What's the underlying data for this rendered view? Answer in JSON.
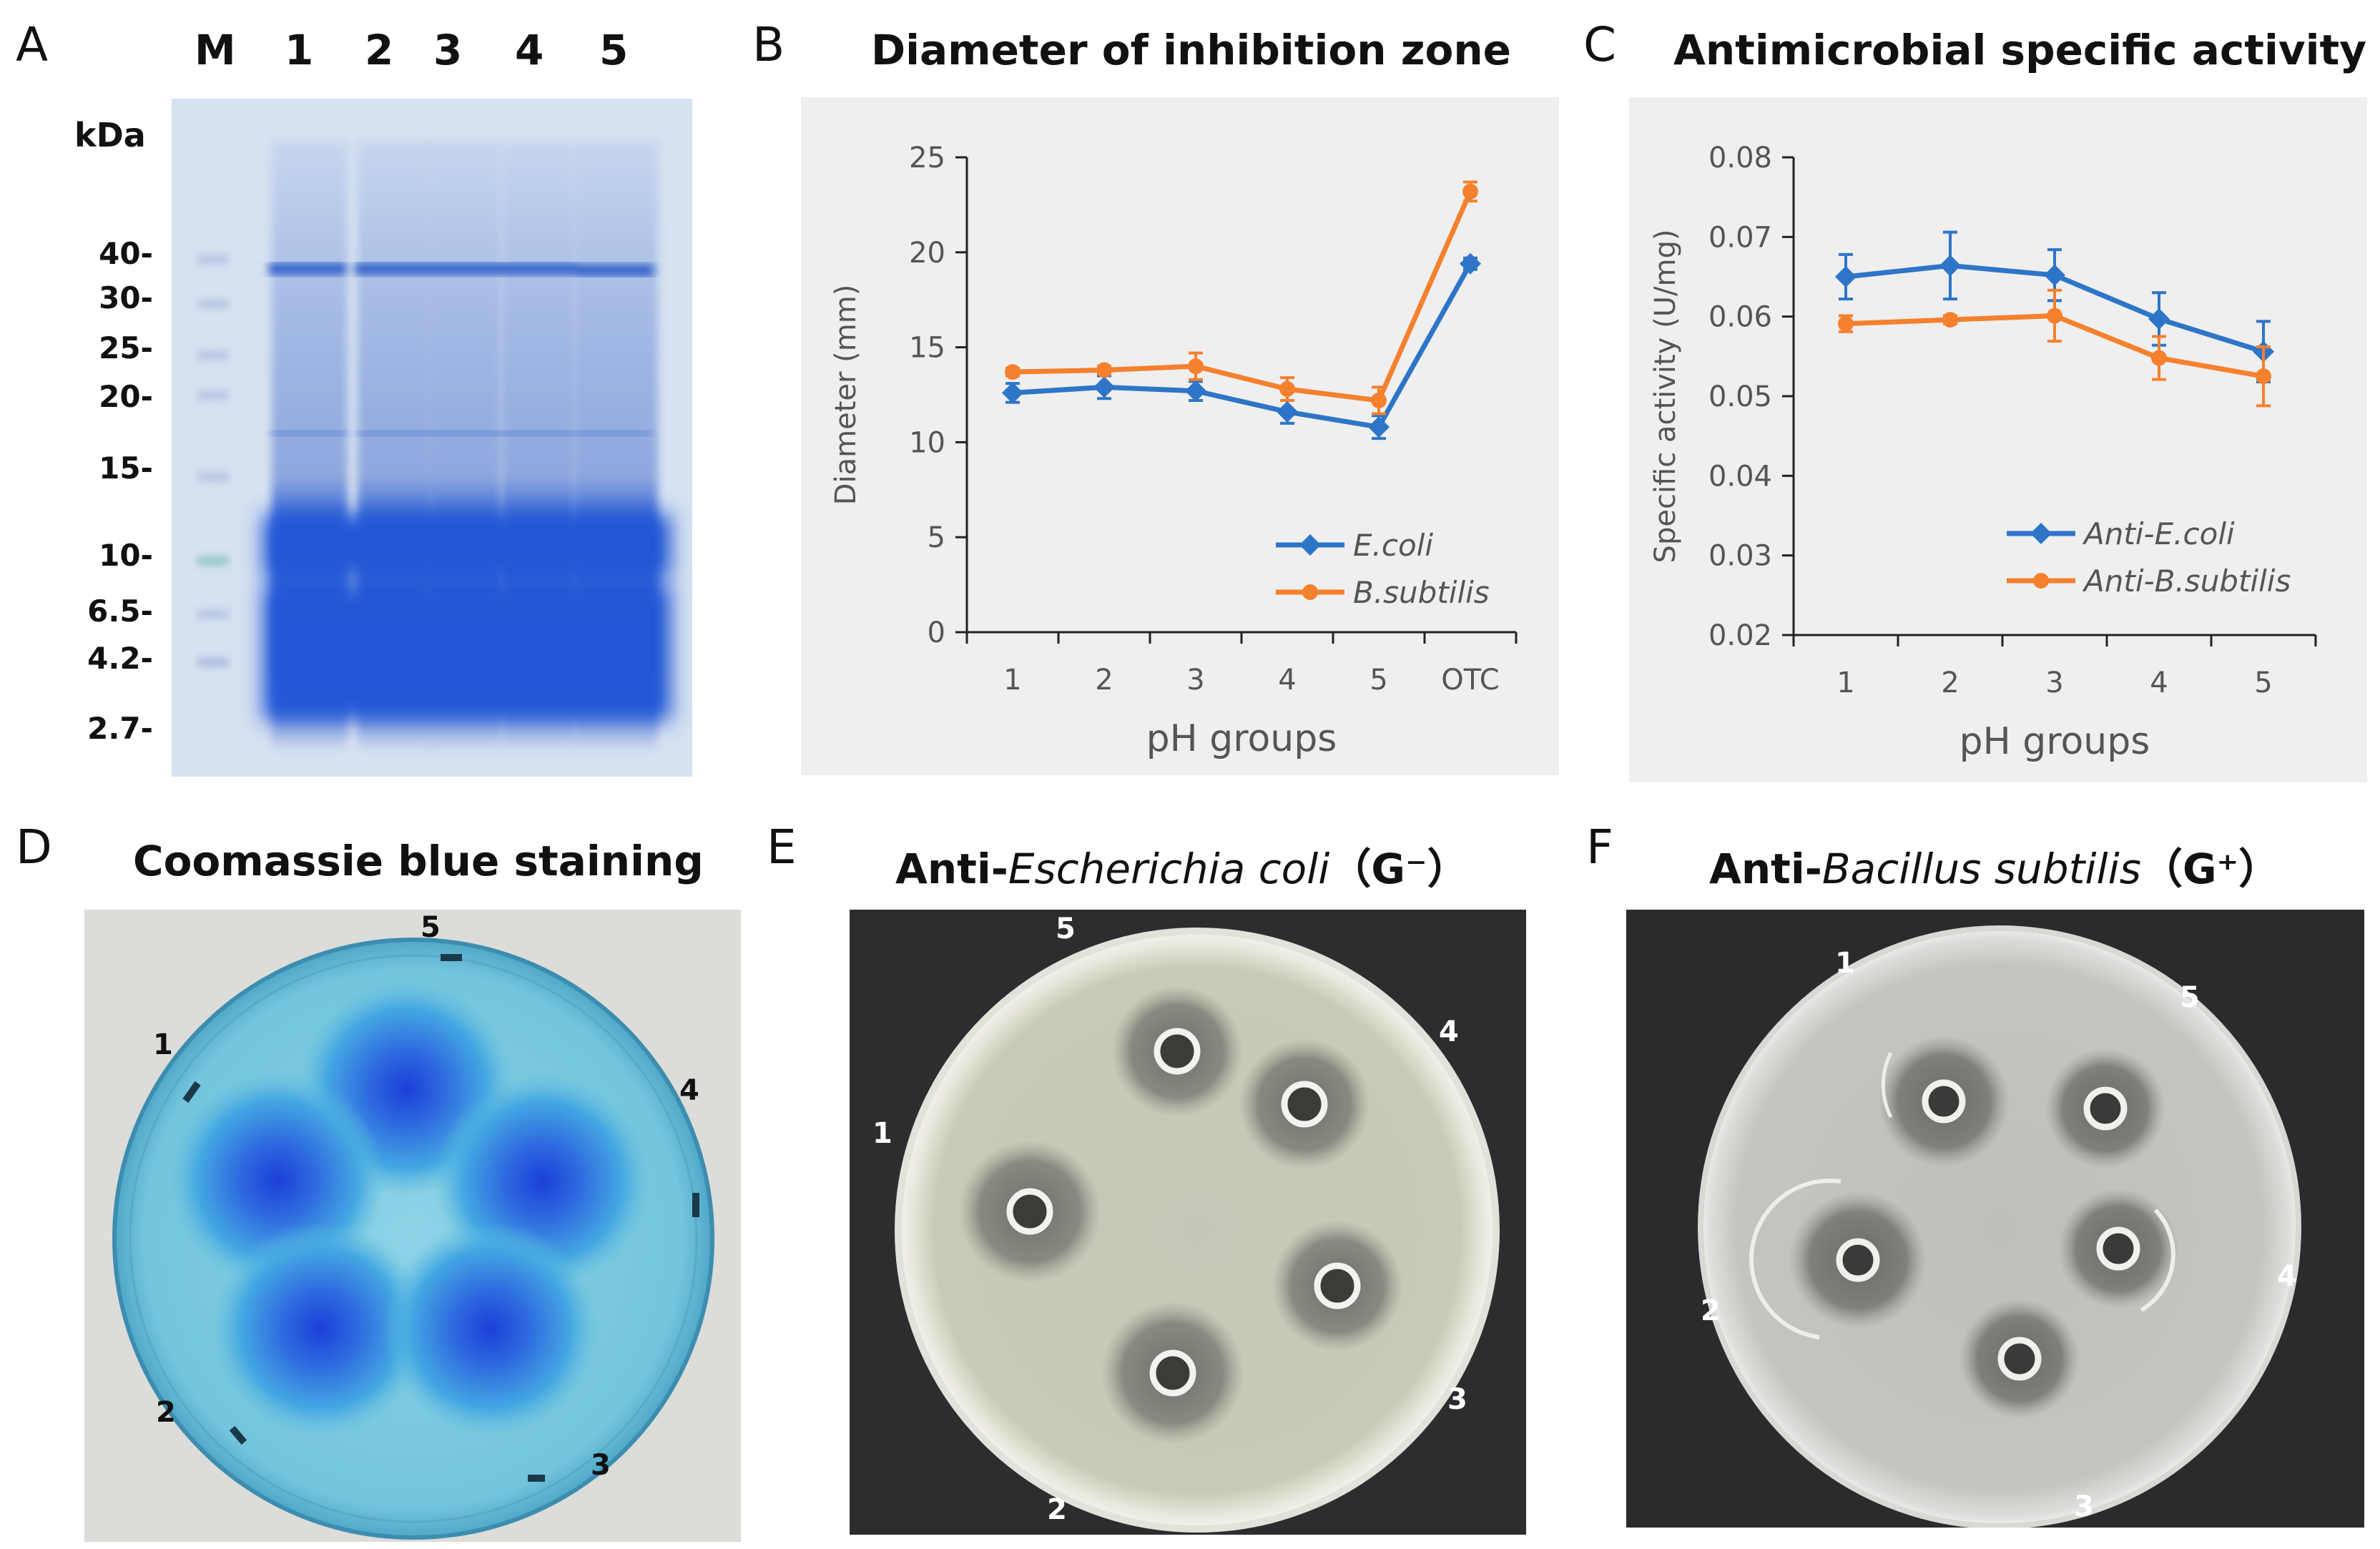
{
  "panels": {
    "A": {
      "letter": "A",
      "lanes": [
        "M",
        "1",
        "2",
        "3",
        "4",
        "5"
      ],
      "unit": "kDa",
      "markers": [
        "40-",
        "30-",
        "25-",
        "20-",
        "15-",
        "10-",
        "6.5-",
        "4.2-",
        "2.7-"
      ]
    },
    "B": {
      "letter": "B",
      "title": "Diameter of inhibition zone"
    },
    "C": {
      "letter": "C",
      "title": "Antimicrobial specific activity"
    },
    "D": {
      "letter": "D",
      "title": "Coomassie blue staining",
      "wells": [
        "1",
        "2",
        "3",
        "4",
        "5"
      ]
    },
    "E": {
      "letter": "E",
      "title_prefix": "Anti-",
      "title_italic": "Escherichia coli",
      "title_suffix": "（G⁻）",
      "wells": [
        "1",
        "2",
        "3",
        "4",
        "5"
      ]
    },
    "F": {
      "letter": "F",
      "title_prefix": "Anti-",
      "title_italic": "Bacillus subtilis",
      "title_suffix": "（G⁺）",
      "wells": [
        "1",
        "2",
        "3",
        "4",
        "5"
      ]
    }
  },
  "chart_data": [
    {
      "type": "line",
      "title": "Diameter of inhibition zone",
      "xlabel": "pH groups",
      "ylabel": "Diameter (mm)",
      "categories": [
        "1",
        "2",
        "3",
        "4",
        "5",
        "OTC"
      ],
      "ylim": [
        0,
        25
      ],
      "yticks": [
        "0",
        "5",
        "10",
        "15",
        "20",
        "25"
      ],
      "series": [
        {
          "name": "E.coli",
          "color": "#2e75c8",
          "marker": "diamond",
          "values": [
            12.6,
            12.9,
            12.7,
            11.6,
            10.8,
            19.4
          ],
          "errors": [
            0.5,
            0.6,
            0.5,
            0.6,
            0.6,
            0.3
          ]
        },
        {
          "name": "B.subtilis",
          "color": "#f5802e",
          "marker": "circle",
          "values": [
            13.7,
            13.8,
            14.0,
            12.8,
            12.2,
            23.2
          ],
          "errors": [
            0.2,
            0.2,
            0.7,
            0.6,
            0.7,
            0.5
          ]
        }
      ]
    },
    {
      "type": "line",
      "title": "Antimicrobial specific activity",
      "xlabel": "pH groups",
      "ylabel": "Specific activity (U/mg)",
      "categories": [
        "1",
        "2",
        "3",
        "4",
        "5"
      ],
      "ylim": [
        0.02,
        0.08
      ],
      "yticks": [
        "0.02",
        "0.03",
        "0.04",
        "0.05",
        "0.06",
        "0.07",
        "0.08"
      ],
      "series": [
        {
          "name": "Anti-E.coli",
          "color": "#2e75c8",
          "marker": "diamond",
          "values": [
            0.065,
            0.0664,
            0.0652,
            0.0597,
            0.0556
          ],
          "errors": [
            0.0028,
            0.0042,
            0.0032,
            0.0033,
            0.0038
          ]
        },
        {
          "name": "Anti-B.subtilis",
          "color": "#f5802e",
          "marker": "circle",
          "values": [
            0.0591,
            0.0596,
            0.0601,
            0.0548,
            0.0525
          ],
          "errors": [
            0.001,
            0.0005,
            0.0032,
            0.0027,
            0.0037
          ]
        }
      ]
    }
  ]
}
